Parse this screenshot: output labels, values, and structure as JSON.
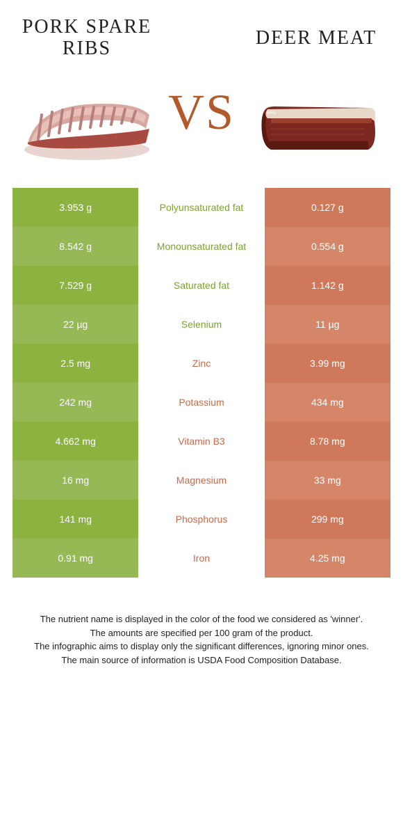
{
  "header": {
    "left_title": "Pork spare ribs",
    "right_title": "Deer meat",
    "vs_text": "VS"
  },
  "colors": {
    "green_dark": "#8cb23f",
    "green_light": "#97b955",
    "red_dark": "#d0795a",
    "red_light": "#d58568",
    "green_text": "#7aa330",
    "red_text": "#c76a4a",
    "vs_color": "#b25a2c"
  },
  "rows": [
    {
      "left": "3.953 g",
      "label": "Polyunsaturated fat",
      "right": "0.127 g",
      "winner": "left"
    },
    {
      "left": "8.542 g",
      "label": "Monounsaturated fat",
      "right": "0.554 g",
      "winner": "left"
    },
    {
      "left": "7.529 g",
      "label": "Saturated fat",
      "right": "1.142 g",
      "winner": "left"
    },
    {
      "left": "22 µg",
      "label": "Selenium",
      "right": "11 µg",
      "winner": "left"
    },
    {
      "left": "2.5 mg",
      "label": "Zinc",
      "right": "3.99 mg",
      "winner": "right"
    },
    {
      "left": "242 mg",
      "label": "Potassium",
      "right": "434 mg",
      "winner": "right"
    },
    {
      "left": "4.662 mg",
      "label": "Vitamin B3",
      "right": "8.78 mg",
      "winner": "right"
    },
    {
      "left": "16 mg",
      "label": "Magnesium",
      "right": "33 mg",
      "winner": "right"
    },
    {
      "left": "141 mg",
      "label": "Phosphorus",
      "right": "299 mg",
      "winner": "right"
    },
    {
      "left": "0.91 mg",
      "label": "Iron",
      "right": "4.25 mg",
      "winner": "right"
    }
  ],
  "footer": {
    "line1": "The nutrient name is displayed in the color of the food we considered as 'winner'.",
    "line2": "The amounts are specified per 100 gram of the product.",
    "line3": "The infographic aims to display only the significant differences, ignoring minor ones.",
    "line4": "The main source of information is USDA Food Composition Database."
  }
}
